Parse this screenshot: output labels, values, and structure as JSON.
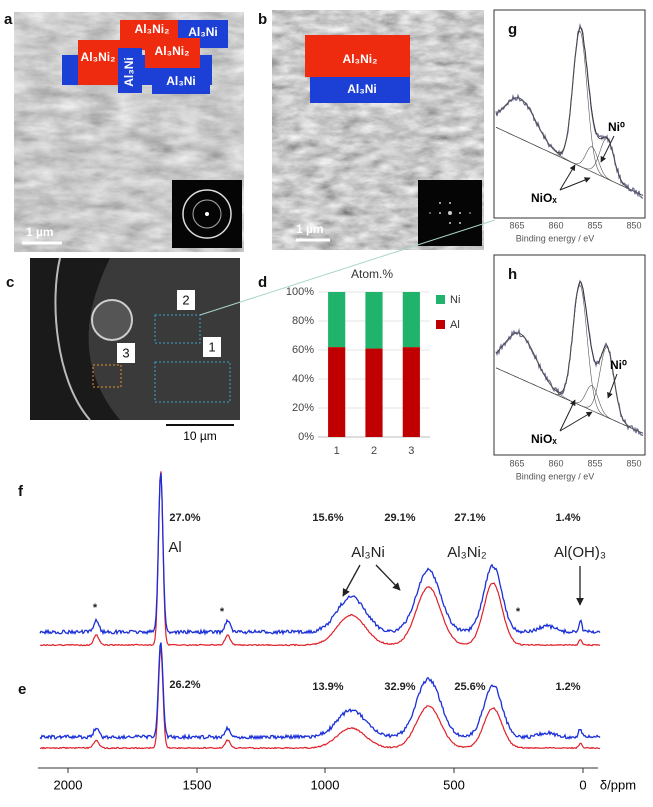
{
  "panel_a": {
    "label": "a",
    "phases": [
      "Al₃Ni₂",
      "Al₃Ni₂",
      "Al₃Ni",
      "Al₃Ni",
      "Al₃Ni₂",
      "Al₃Ni"
    ],
    "scale_bar": "1 µm"
  },
  "panel_b": {
    "label": "b",
    "phases": [
      "Al₃Ni₂",
      "Al₃Ni"
    ],
    "scale_bar": "1 µm"
  },
  "panel_c": {
    "label": "c",
    "regions": [
      "1",
      "2",
      "3"
    ],
    "scale_bar": "10 µm"
  },
  "chart_data": {
    "type": "bar",
    "panel_label": "d",
    "title": "Atom.%",
    "stacked": true,
    "categories": [
      "1",
      "2",
      "3"
    ],
    "series": [
      {
        "name": "Ni",
        "color": "#1fb36b",
        "values": [
          38,
          39,
          38
        ]
      },
      {
        "name": "Al",
        "color": "#c00000",
        "values": [
          62,
          61,
          62
        ]
      }
    ],
    "ylim": [
      0,
      100
    ],
    "yticks": [
      {
        "value": 0,
        "label": "0%"
      },
      {
        "value": 20,
        "label": "20%"
      },
      {
        "value": 40,
        "label": "40%"
      },
      {
        "value": 60,
        "label": "60%"
      },
      {
        "value": 80,
        "label": "80%"
      },
      {
        "value": 100,
        "label": "100%"
      }
    ],
    "grid": true,
    "legend": "right"
  },
  "panel_g": {
    "label": "g",
    "peak_labels": [
      "Ni⁰",
      "NiOₓ"
    ],
    "xticks": [
      "865",
      "860",
      "855",
      "850"
    ],
    "xlabel": "Binding energy / eV"
  },
  "panel_h": {
    "label": "h",
    "peak_labels": [
      "Ni⁰",
      "NiOₓ"
    ],
    "xticks": [
      "865",
      "860",
      "855",
      "850"
    ],
    "xlabel": "Binding energy / eV"
  },
  "nmr": {
    "xticks": [
      "2000",
      "1500",
      "1000",
      "500",
      "0"
    ],
    "xlabel": "δ/ppm",
    "sideband": "*",
    "f": {
      "label": "f",
      "percents": [
        "27.0%",
        "15.6%",
        "29.1%",
        "27.1%",
        "1.4%"
      ],
      "assignments": [
        "Al",
        "Al₃Ni",
        "Al₃Ni₂",
        "Al(OH)₃"
      ]
    },
    "e": {
      "label": "e",
      "percents": [
        "26.2%",
        "13.9%",
        "32.9%",
        "25.6%",
        "1.2%"
      ]
    }
  }
}
